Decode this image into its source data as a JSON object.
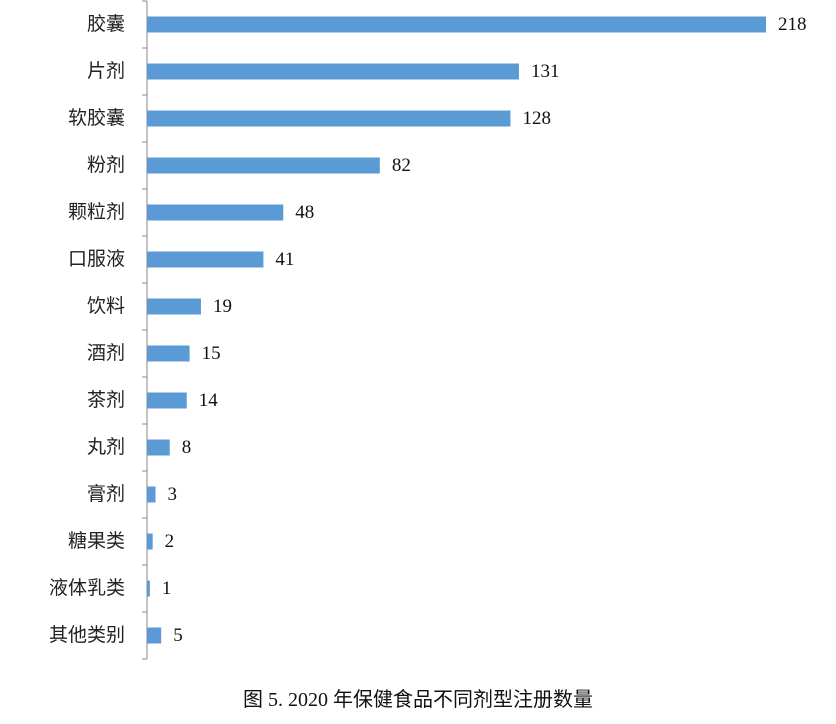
{
  "chart_data": {
    "type": "hbar",
    "caption": "图 5. 2020 年保健食品不同剂型注册数量",
    "categories": [
      "胶囊",
      "片剂",
      "软胶囊",
      "粉剂",
      "颗粒剂",
      "口服液",
      "饮料",
      "酒剂",
      "茶剂",
      "丸剂",
      "膏剂",
      "糖果类",
      "液体乳类",
      "其他类别"
    ],
    "values": [
      218,
      131,
      128,
      82,
      48,
      41,
      19,
      15,
      14,
      8,
      3,
      2,
      1,
      5
    ],
    "color": "#5b9bd5"
  }
}
